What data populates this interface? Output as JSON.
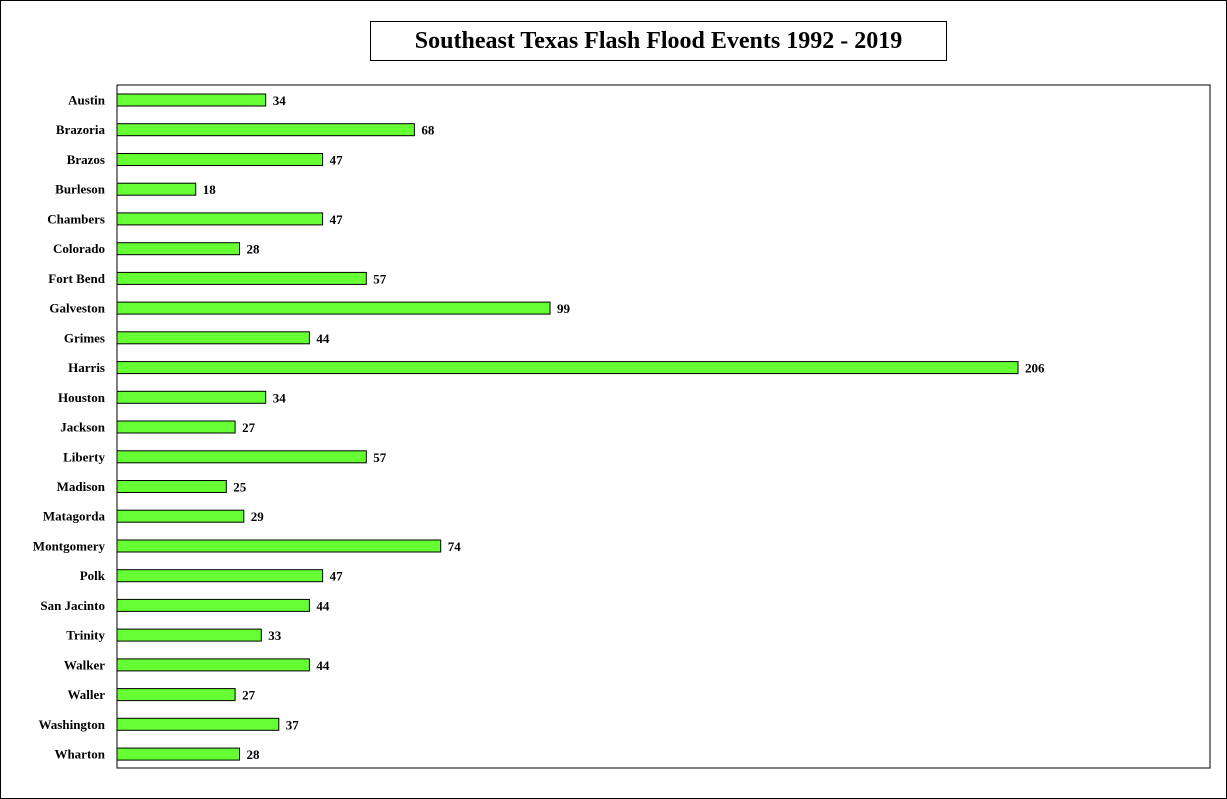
{
  "colors": {
    "bar_fill": "#66ff33",
    "bar_stroke": "#000000",
    "background": "#ffffff"
  },
  "chart_data": {
    "type": "bar",
    "orientation": "horizontal",
    "title": "Southeast Texas Flash Flood Events 1992 - 2019",
    "xlabel": "",
    "ylabel": "",
    "grid": false,
    "legend": "none",
    "xlim": [
      0,
      206
    ],
    "categories": [
      "Austin",
      "Brazoria",
      "Brazos",
      "Burleson",
      "Chambers",
      "Colorado",
      "Fort Bend",
      "Galveston",
      "Grimes",
      "Harris",
      "Houston",
      "Jackson",
      "Liberty",
      "Madison",
      "Matagorda",
      "Montgomery",
      "Polk",
      "San Jacinto",
      "Trinity",
      "Walker",
      "Waller",
      "Washington",
      "Wharton"
    ],
    "values": [
      34,
      68,
      47,
      18,
      47,
      28,
      57,
      99,
      44,
      206,
      34,
      27,
      57,
      25,
      29,
      74,
      47,
      44,
      33,
      44,
      27,
      37,
      28
    ],
    "data_labels": true
  }
}
